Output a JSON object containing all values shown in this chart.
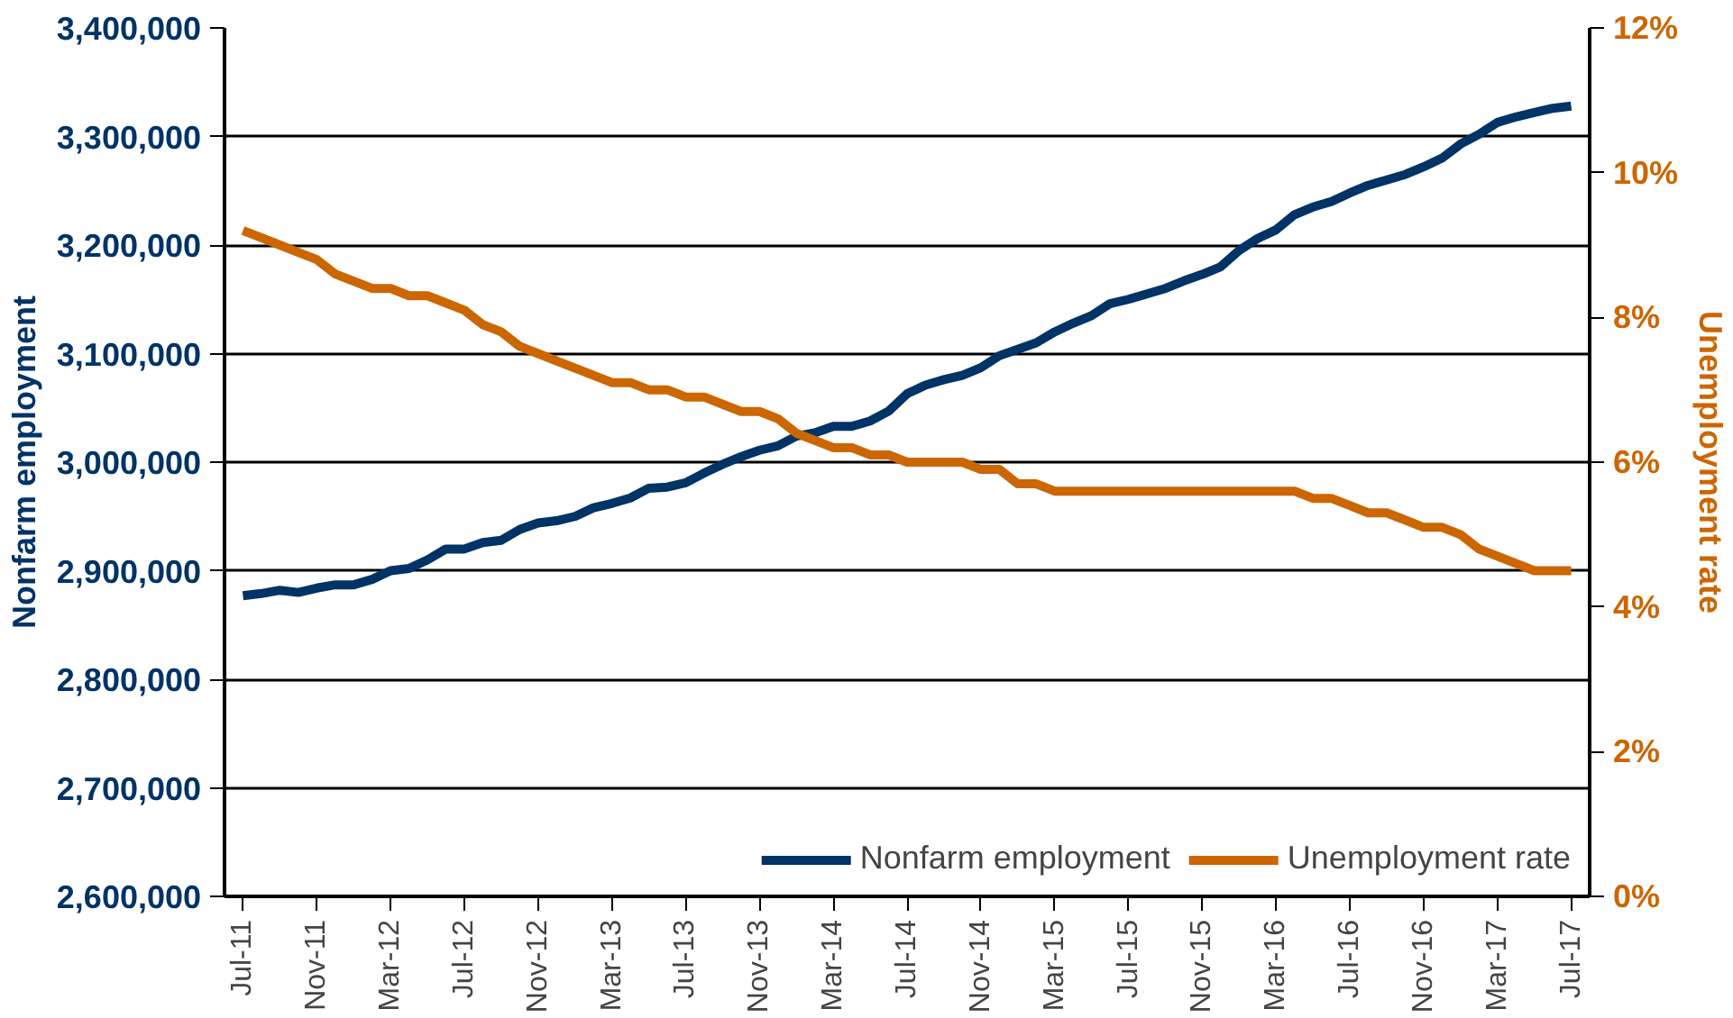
{
  "chart_data": {
    "type": "line",
    "xlabel": null,
    "ylabel": "Nonfarm employment",
    "y2label": "Unemployment rate",
    "categories": [
      "Jul-11",
      null,
      null,
      null,
      "Nov-11",
      null,
      null,
      null,
      "Mar-12",
      null,
      null,
      null,
      "Jul-12",
      null,
      null,
      null,
      "Nov-12",
      null,
      null,
      null,
      "Mar-13",
      null,
      null,
      null,
      "Jul-13",
      null,
      null,
      null,
      "Nov-13",
      null,
      null,
      null,
      "Mar-14",
      null,
      null,
      null,
      "Jul-14",
      null,
      null,
      null,
      "Nov-14",
      null,
      null,
      null,
      "Mar-15",
      null,
      null,
      null,
      "Jul-15",
      null,
      null,
      null,
      "Nov-15",
      null,
      null,
      null,
      "Mar-16",
      null,
      null,
      null,
      "Jul-16",
      null,
      null,
      null,
      "Nov-16",
      null,
      null,
      null,
      "Mar-17",
      null,
      null,
      null,
      "Jul-17"
    ],
    "series": [
      {
        "name": "Nonfarm employment",
        "color": "#003366",
        "values": [
          2877000,
          2879000,
          2882000,
          2880000,
          2884000,
          2887000,
          2887000,
          2892000,
          2900000,
          2902000,
          2910000,
          2920000,
          2920000,
          2926000,
          2928000,
          2938000,
          2944000,
          2946000,
          2950000,
          2958000,
          2962000,
          2967000,
          2976000,
          2977000,
          2981000,
          2990000,
          2998000,
          3005000,
          3011000,
          3015000,
          3024000,
          3027000,
          3033000,
          3033000,
          3038000,
          3047000,
          3063000,
          3071000,
          3076000,
          3080000,
          3087000,
          3098000,
          3104000,
          3110000,
          3120000,
          3128000,
          3135000,
          3146000,
          3150000,
          3155000,
          3160000,
          3167000,
          3173000,
          3180000,
          3195000,
          3206000,
          3214000,
          3228000,
          3235000,
          3240000,
          3248000,
          3255000,
          3260000,
          3265000,
          3272000,
          3280000,
          3293000,
          3302000,
          3313000,
          3318000,
          3322000,
          3326000,
          3328000
        ]
      },
      {
        "name": "Unemployment rate",
        "color": "#cc6600",
        "axis": "y2",
        "values": [
          9.2,
          9.1,
          9.0,
          8.9,
          8.8,
          8.6,
          8.5,
          8.4,
          8.4,
          8.3,
          8.3,
          8.2,
          8.1,
          7.9,
          7.8,
          7.6,
          7.5,
          7.4,
          7.3,
          7.2,
          7.1,
          7.1,
          7.0,
          7.0,
          6.9,
          6.9,
          6.8,
          6.7,
          6.7,
          6.6,
          6.4,
          6.3,
          6.2,
          6.2,
          6.1,
          6.1,
          6.0,
          6.0,
          6.0,
          6.0,
          5.9,
          5.9,
          5.7,
          5.7,
          5.6,
          5.6,
          5.6,
          5.6,
          5.6,
          5.6,
          5.6,
          5.6,
          5.6,
          5.6,
          5.6,
          5.6,
          5.6,
          5.6,
          5.5,
          5.5,
          5.4,
          5.3,
          5.3,
          5.2,
          5.1,
          5.1,
          5.0,
          4.8,
          4.7,
          4.6,
          4.5,
          4.5,
          4.5
        ]
      }
    ],
    "ylim": [
      2600000,
      3400000
    ],
    "yticks": [
      {
        "value": 2600000,
        "label": "2,600,000"
      },
      {
        "value": 2700000,
        "label": "2,700,000"
      },
      {
        "value": 2800000,
        "label": "2,800,000"
      },
      {
        "value": 2900000,
        "label": "2,900,000"
      },
      {
        "value": 3000000,
        "label": "3,000,000"
      },
      {
        "value": 3100000,
        "label": "3,100,000"
      },
      {
        "value": 3200000,
        "label": "3,200,000"
      },
      {
        "value": 3300000,
        "label": "3,300,000"
      },
      {
        "value": 3400000,
        "label": "3,400,000"
      }
    ],
    "y2lim": [
      0,
      12
    ],
    "y2ticks": [
      {
        "value": 0,
        "label": "0%"
      },
      {
        "value": 2,
        "label": "2%"
      },
      {
        "value": 4,
        "label": "4%"
      },
      {
        "value": 6,
        "label": "6%"
      },
      {
        "value": 8,
        "label": "8%"
      },
      {
        "value": 10,
        "label": "10%"
      },
      {
        "value": 12,
        "label": "12%"
      }
    ],
    "grid": "y",
    "legend": "bottom right",
    "line_style": "solid",
    "marker": "none"
  }
}
